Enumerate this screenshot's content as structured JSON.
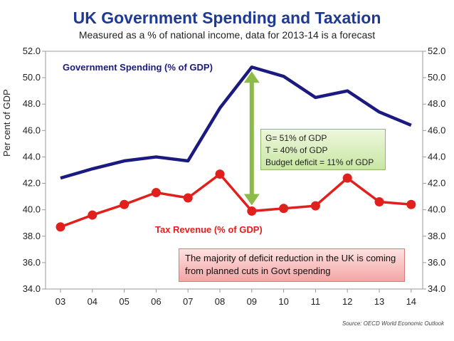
{
  "title": "UK Government Spending and Taxation",
  "subtitle": "Measured as a % of national income, data for 2013-14 is a forecast",
  "source": "Source: OECD World Economic Outlook",
  "colors": {
    "spending": "#1a1a80",
    "tax": "#e0201c",
    "arrow": "#8dbb4a",
    "title": "#1f3a93"
  },
  "chart_data": {
    "type": "line",
    "title": "UK Government Spending and Taxation",
    "ylabel": "Per cent of GDP",
    "xlabel": "",
    "ylim": [
      34.0,
      52.0
    ],
    "yticks": [
      "34.0",
      "36.0",
      "38.0",
      "40.0",
      "42.0",
      "44.0",
      "46.0",
      "48.0",
      "50.0",
      "52.0"
    ],
    "categories": [
      "03",
      "04",
      "05",
      "06",
      "07",
      "08",
      "09",
      "10",
      "11",
      "12",
      "13",
      "14"
    ],
    "series": [
      {
        "name": "Government Spending (% of GDP)",
        "values": [
          42.4,
          43.1,
          43.7,
          44.0,
          43.7,
          47.7,
          50.8,
          50.1,
          48.5,
          49.0,
          47.4,
          46.4
        ]
      },
      {
        "name": "Tax Revenue (% of GDP)",
        "values": [
          38.7,
          39.6,
          40.4,
          41.3,
          40.9,
          42.7,
          39.9,
          40.1,
          40.3,
          42.4,
          40.6,
          40.4
        ]
      }
    ],
    "annotation": {
      "lines": [
        "G= 51% of GDP",
        "T = 40% of GDP",
        "Budget deficit = 11% of GDP"
      ]
    },
    "note": "The majority of deficit reduction in the UK is coming from planned cuts in Govt spending"
  }
}
